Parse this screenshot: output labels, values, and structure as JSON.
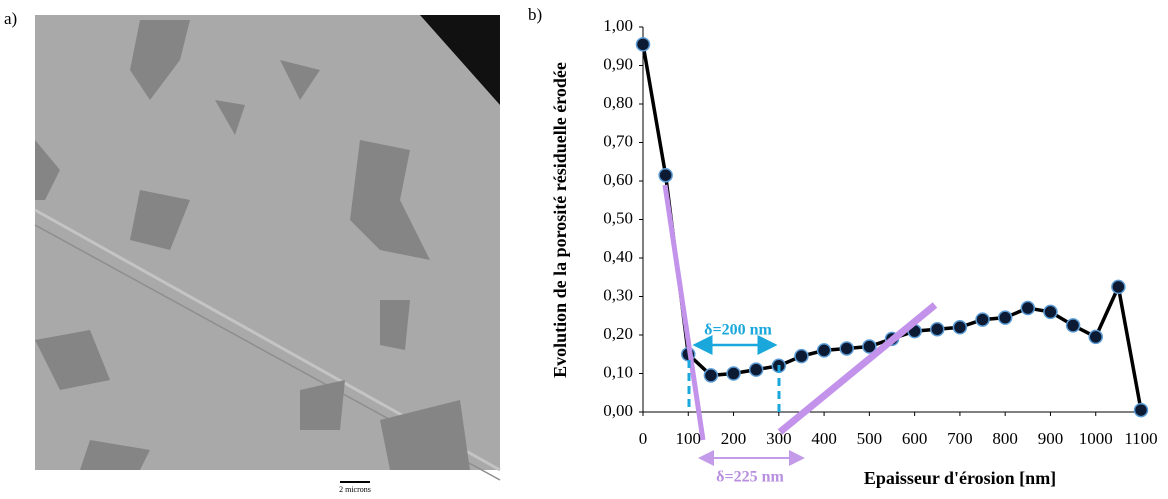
{
  "panel_a": {
    "label": "a)",
    "scale_bar": "2 microns"
  },
  "chart_data": {
    "type": "line",
    "panel_label": "b)",
    "x_label": "Epaisseur d'érosion [nm]",
    "y_label": "Evolution de la porosité résiduelle érodée",
    "x": [
      0,
      50,
      100,
      150,
      200,
      250,
      300,
      350,
      400,
      450,
      500,
      550,
      600,
      650,
      700,
      750,
      800,
      850,
      900,
      950,
      1000,
      1050,
      1100
    ],
    "values": [
      0.955,
      0.615,
      0.15,
      0.095,
      0.1,
      0.11,
      0.12,
      0.145,
      0.16,
      0.165,
      0.17,
      0.19,
      0.21,
      0.215,
      0.22,
      0.24,
      0.245,
      0.27,
      0.26,
      0.225,
      0.195,
      0.325,
      0.005
    ],
    "color": "#000000",
    "marker_color": "#0d1a33",
    "marker_edge": "#5b9bd5",
    "xlim": [
      0,
      1100
    ],
    "xticks": [
      0,
      100,
      200,
      300,
      400,
      500,
      600,
      700,
      800,
      900,
      1000,
      1100
    ],
    "ylim": [
      0,
      1
    ],
    "yticks": [
      {
        "value": 0,
        "label": "0,00"
      },
      {
        "value": 0.1,
        "label": "0,10"
      },
      {
        "value": 0.2,
        "label": "0,20"
      },
      {
        "value": 0.3,
        "label": "0,30"
      },
      {
        "value": 0.4,
        "label": "0,40"
      },
      {
        "value": 0.5,
        "label": "0,50"
      },
      {
        "value": 0.6,
        "label": "0,60"
      },
      {
        "value": 0.7,
        "label": "0,70"
      },
      {
        "value": 0.8,
        "label": "0,80"
      },
      {
        "value": 0.9,
        "label": "0,90"
      },
      {
        "value": 1,
        "label": "1,00"
      }
    ],
    "annotations": [
      "δ=200 nm",
      "δ=225 nm"
    ]
  }
}
